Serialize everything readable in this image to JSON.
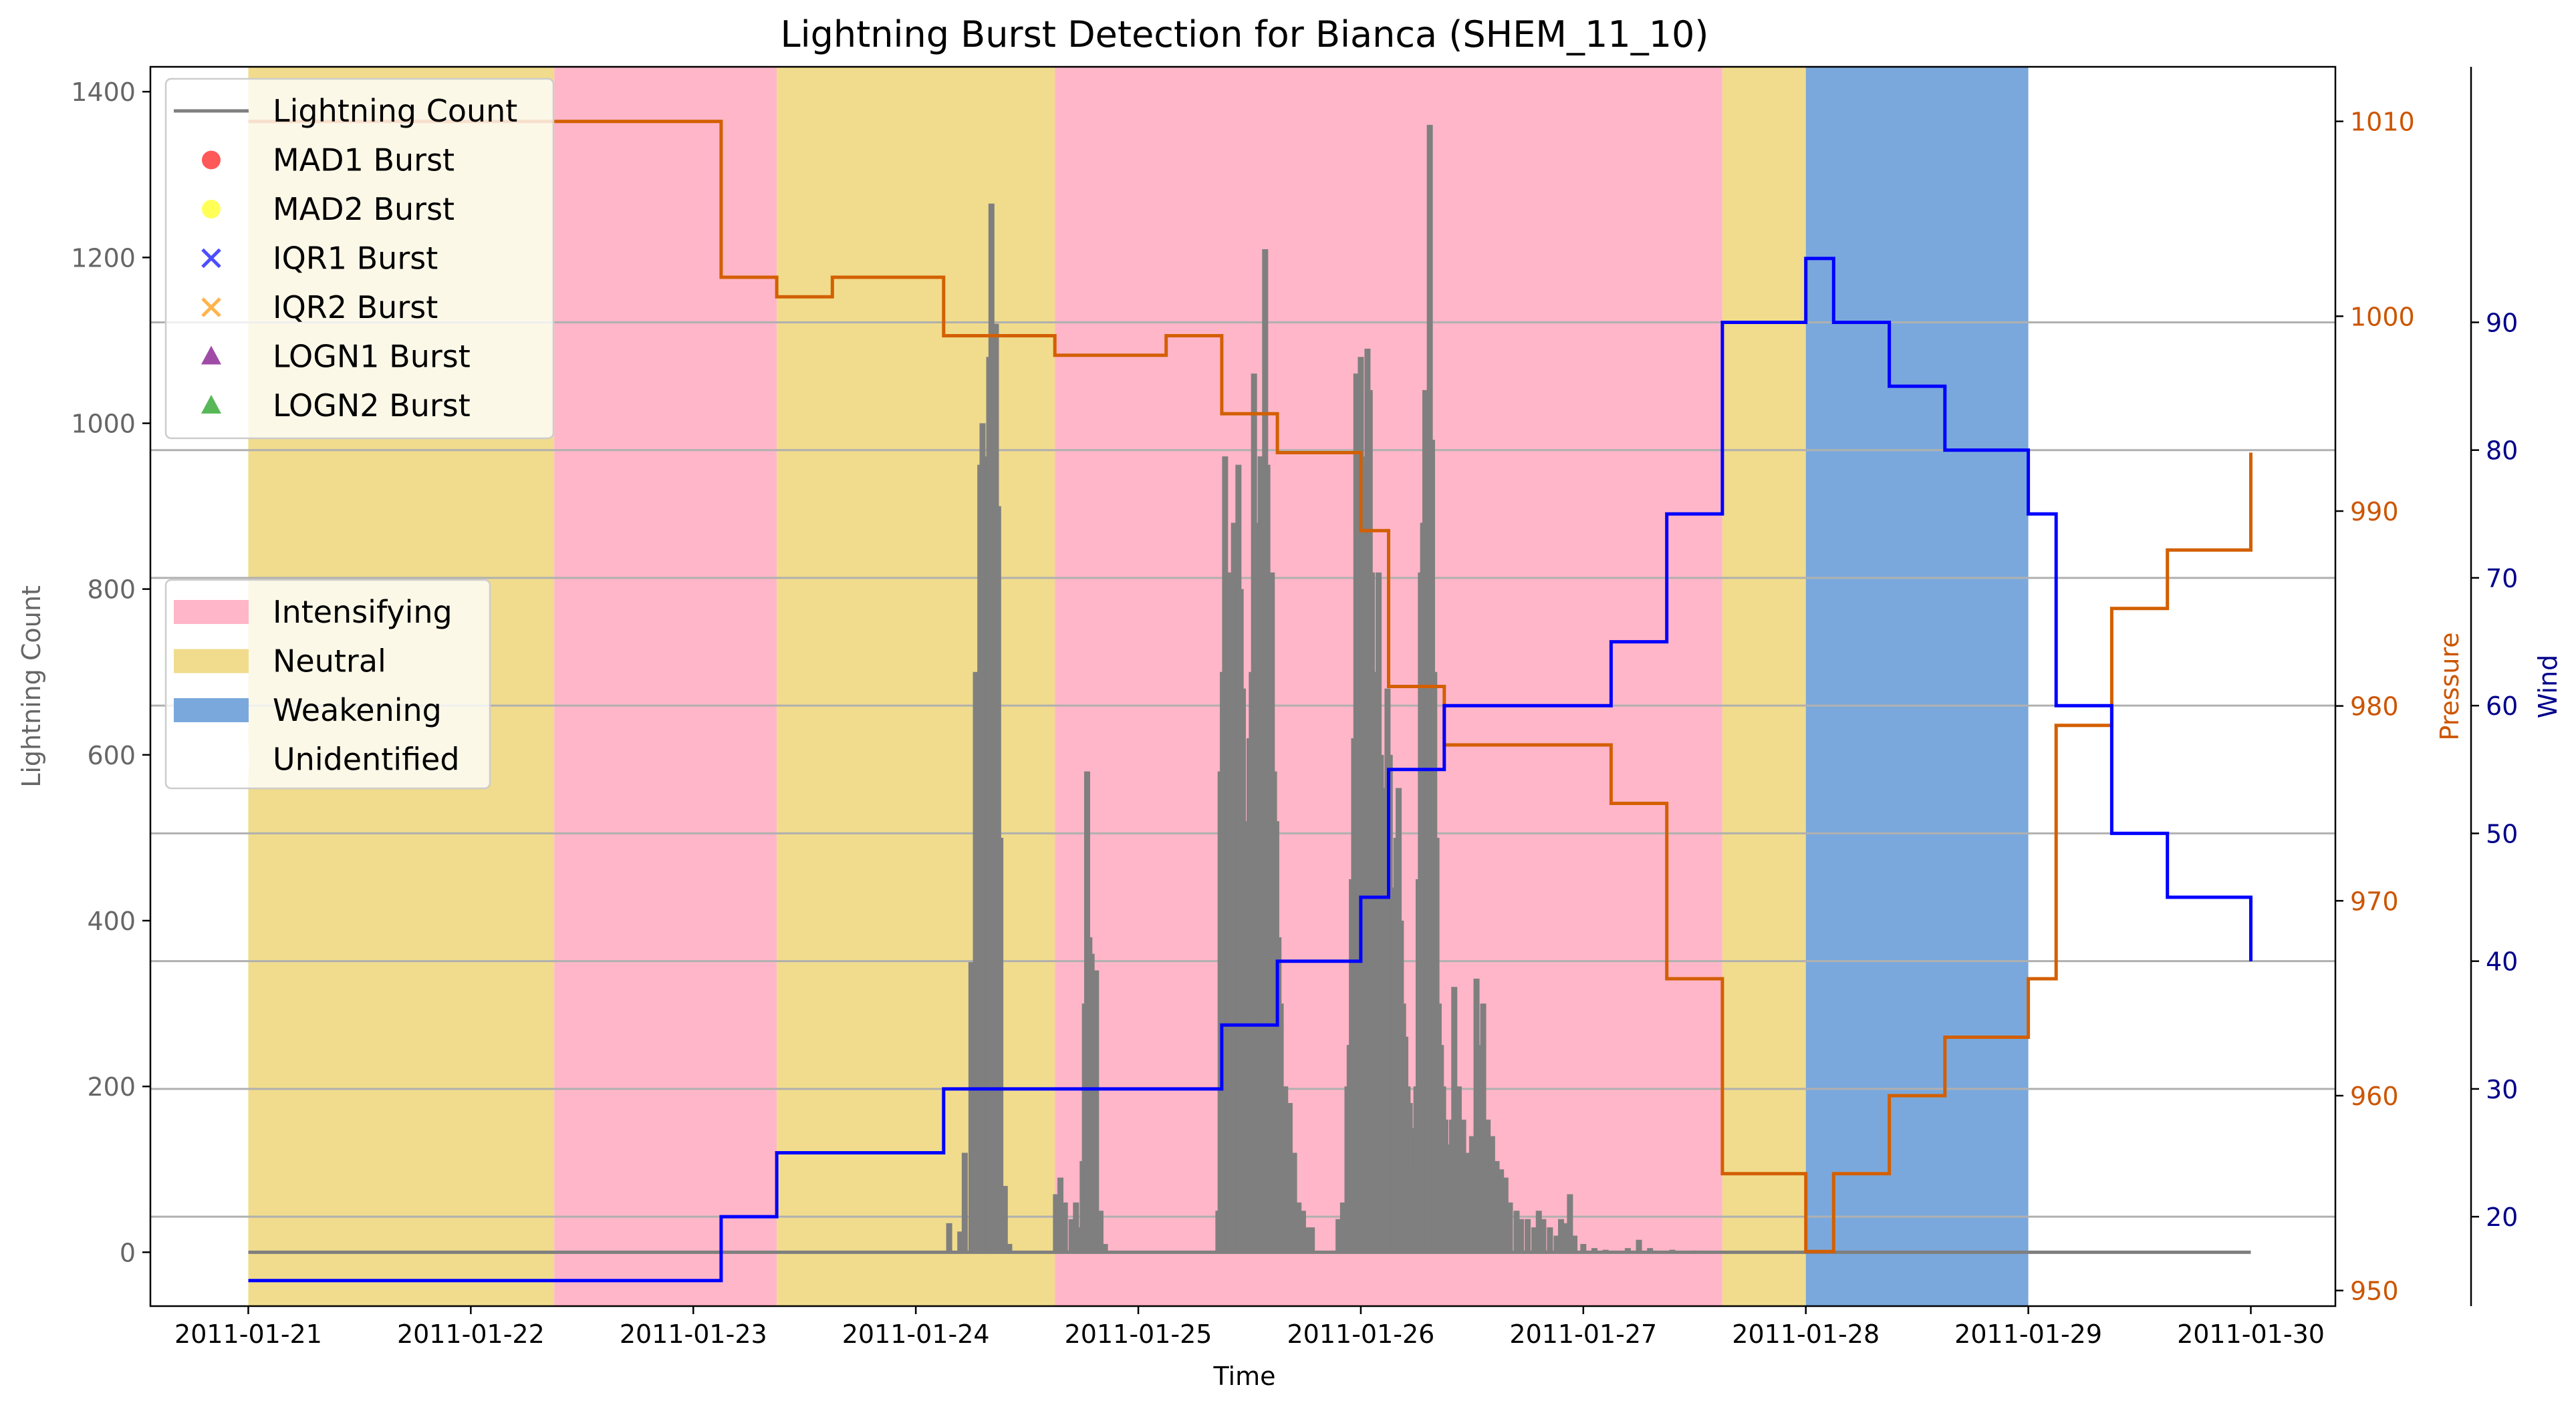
{
  "chart_data": {
    "type": "line",
    "title": "Lightning Burst Detection for Bianca (SHEM_11_10)",
    "xlabel": "Time",
    "ylabel_left": "Lightning Count",
    "ylabel_pressure": "Pressure",
    "ylabel_wind": "Wind",
    "x_ticks": [
      "2011-01-21",
      "2011-01-22",
      "2011-01-23",
      "2011-01-24",
      "2011-01-25",
      "2011-01-26",
      "2011-01-27",
      "2011-01-28",
      "2011-01-29",
      "2011-01-30"
    ],
    "xlim_days": [
      -0.44,
      9.38
    ],
    "y_left": {
      "lim": [
        -65,
        1430
      ],
      "ticks": [
        0,
        200,
        400,
        600,
        800,
        1000,
        1200,
        1400
      ]
    },
    "y_pressure": {
      "lim": [
        949.2,
        1012.8
      ],
      "ticks": [
        950,
        960,
        970,
        980,
        990,
        1000,
        1010
      ]
    },
    "y_wind": {
      "lim": [
        13,
        110
      ],
      "ticks": [
        20,
        30,
        40,
        50,
        60,
        70,
        80,
        90
      ]
    },
    "grid": "wind-axis horizontal lines",
    "colors": {
      "lightning": "#7f7f7f",
      "pressure": "#d35f00",
      "wind": "#0000ff",
      "intensifying": "#ffb6c8",
      "neutral": "#f0dc8c",
      "weakening": "#7aa8dc",
      "pressure_axis": "#cc5500",
      "wind_axis": "#00008b",
      "left_axis": "#666666"
    },
    "phases": [
      {
        "label": "Neutral",
        "start": 0.0,
        "end": 1.375
      },
      {
        "label": "Intensifying",
        "start": 1.375,
        "end": 2.375
      },
      {
        "label": "Neutral",
        "start": 2.375,
        "end": 3.625
      },
      {
        "label": "Intensifying",
        "start": 3.625,
        "end": 6.625
      },
      {
        "label": "Neutral",
        "start": 6.625,
        "end": 7.0
      },
      {
        "label": "Weakening",
        "start": 7.0,
        "end": 8.0
      }
    ],
    "pressure_series": {
      "name": "Pressure",
      "points": [
        [
          0.0,
          1010
        ],
        [
          2.125,
          1010
        ],
        [
          2.125,
          1002
        ],
        [
          2.375,
          1002
        ],
        [
          2.375,
          1001
        ],
        [
          2.625,
          1001
        ],
        [
          2.625,
          1002
        ],
        [
          3.125,
          1002
        ],
        [
          3.125,
          999
        ],
        [
          3.625,
          999
        ],
        [
          3.625,
          998
        ],
        [
          4.125,
          998
        ],
        [
          4.125,
          999
        ],
        [
          4.375,
          999
        ],
        [
          4.375,
          995
        ],
        [
          4.625,
          995
        ],
        [
          4.625,
          993
        ],
        [
          5.0,
          993
        ],
        [
          5.0,
          989
        ],
        [
          5.125,
          989
        ],
        [
          5.125,
          981
        ],
        [
          5.375,
          981
        ],
        [
          5.375,
          978
        ],
        [
          6.125,
          978
        ],
        [
          6.125,
          975
        ],
        [
          6.375,
          975
        ],
        [
          6.375,
          966
        ],
        [
          6.625,
          966
        ],
        [
          6.625,
          956
        ],
        [
          7.0,
          956
        ],
        [
          7.0,
          952
        ],
        [
          7.125,
          952
        ],
        [
          7.125,
          956
        ],
        [
          7.375,
          956
        ],
        [
          7.375,
          960
        ],
        [
          7.625,
          960
        ],
        [
          7.625,
          963
        ],
        [
          8.0,
          963
        ],
        [
          8.0,
          966
        ],
        [
          8.125,
          966
        ],
        [
          8.125,
          979
        ],
        [
          8.375,
          979
        ],
        [
          8.375,
          985
        ],
        [
          8.625,
          985
        ],
        [
          8.625,
          988
        ],
        [
          9.0,
          988
        ],
        [
          9.0,
          993
        ]
      ]
    },
    "wind_series": {
      "name": "Wind",
      "points": [
        [
          0.0,
          15
        ],
        [
          2.125,
          15
        ],
        [
          2.125,
          20
        ],
        [
          2.375,
          20
        ],
        [
          2.375,
          25
        ],
        [
          3.125,
          25
        ],
        [
          3.125,
          30
        ],
        [
          4.375,
          30
        ],
        [
          4.375,
          35
        ],
        [
          4.625,
          35
        ],
        [
          4.625,
          40
        ],
        [
          5.0,
          40
        ],
        [
          5.0,
          45
        ],
        [
          5.125,
          45
        ],
        [
          5.125,
          55
        ],
        [
          5.375,
          55
        ],
        [
          5.375,
          60
        ],
        [
          6.125,
          60
        ],
        [
          6.125,
          65
        ],
        [
          6.375,
          65
        ],
        [
          6.375,
          75
        ],
        [
          6.625,
          75
        ],
        [
          6.625,
          90
        ],
        [
          7.0,
          90
        ],
        [
          7.0,
          95
        ],
        [
          7.125,
          95
        ],
        [
          7.125,
          90
        ],
        [
          7.375,
          90
        ],
        [
          7.375,
          85
        ],
        [
          7.625,
          85
        ],
        [
          7.625,
          80
        ],
        [
          8.0,
          80
        ],
        [
          8.0,
          75
        ],
        [
          8.125,
          75
        ],
        [
          8.125,
          60
        ],
        [
          8.375,
          60
        ],
        [
          8.375,
          50
        ],
        [
          8.625,
          50
        ],
        [
          8.625,
          45
        ],
        [
          9.0,
          45
        ],
        [
          9.0,
          40
        ]
      ]
    },
    "lightning_series": {
      "name": "Lightning Count",
      "bursts": [
        [
          3.15,
          35
        ],
        [
          3.2,
          25
        ],
        [
          3.22,
          120
        ],
        [
          3.25,
          350
        ],
        [
          3.27,
          700
        ],
        [
          3.29,
          950
        ],
        [
          3.3,
          1000
        ],
        [
          3.31,
          880
        ],
        [
          3.32,
          960
        ],
        [
          3.33,
          1080
        ],
        [
          3.34,
          1265
        ],
        [
          3.35,
          960
        ],
        [
          3.36,
          1120
        ],
        [
          3.37,
          900
        ],
        [
          3.38,
          500
        ],
        [
          3.4,
          80
        ],
        [
          3.42,
          10
        ],
        [
          3.63,
          70
        ],
        [
          3.65,
          90
        ],
        [
          3.67,
          60
        ],
        [
          3.7,
          40
        ],
        [
          3.72,
          60
        ],
        [
          3.74,
          30
        ],
        [
          3.75,
          110
        ],
        [
          3.76,
          300
        ],
        [
          3.77,
          580
        ],
        [
          3.78,
          380
        ],
        [
          3.79,
          360
        ],
        [
          3.8,
          200
        ],
        [
          3.81,
          340
        ],
        [
          3.83,
          50
        ],
        [
          3.85,
          10
        ],
        [
          4.36,
          50
        ],
        [
          4.37,
          580
        ],
        [
          4.38,
          700
        ],
        [
          4.39,
          960
        ],
        [
          4.4,
          820
        ],
        [
          4.41,
          820
        ],
        [
          4.42,
          760
        ],
        [
          4.43,
          880
        ],
        [
          4.44,
          720
        ],
        [
          4.45,
          950
        ],
        [
          4.46,
          800
        ],
        [
          4.47,
          680
        ],
        [
          4.48,
          520
        ],
        [
          4.49,
          460
        ],
        [
          4.5,
          620
        ],
        [
          4.51,
          700
        ],
        [
          4.52,
          1060
        ],
        [
          4.53,
          880
        ],
        [
          4.54,
          850
        ],
        [
          4.55,
          960
        ],
        [
          4.56,
          900
        ],
        [
          4.57,
          1210
        ],
        [
          4.58,
          950
        ],
        [
          4.59,
          700
        ],
        [
          4.6,
          820
        ],
        [
          4.61,
          580
        ],
        [
          4.62,
          520
        ],
        [
          4.63,
          380
        ],
        [
          4.64,
          300
        ],
        [
          4.66,
          200
        ],
        [
          4.68,
          180
        ],
        [
          4.7,
          120
        ],
        [
          4.72,
          60
        ],
        [
          4.74,
          50
        ],
        [
          4.76,
          30
        ],
        [
          4.78,
          30
        ],
        [
          4.9,
          40
        ],
        [
          4.92,
          60
        ],
        [
          4.94,
          200
        ],
        [
          4.95,
          250
        ],
        [
          4.96,
          450
        ],
        [
          4.97,
          620
        ],
        [
          4.98,
          1060
        ],
        [
          4.99,
          870
        ],
        [
          5.0,
          1080
        ],
        [
          5.01,
          960
        ],
        [
          5.02,
          870
        ],
        [
          5.03,
          1090
        ],
        [
          5.04,
          1040
        ],
        [
          5.05,
          820
        ],
        [
          5.06,
          700
        ],
        [
          5.07,
          690
        ],
        [
          5.08,
          820
        ],
        [
          5.09,
          600
        ],
        [
          5.1,
          400
        ],
        [
          5.11,
          560
        ],
        [
          5.12,
          680
        ],
        [
          5.13,
          600
        ],
        [
          5.14,
          440
        ],
        [
          5.15,
          430
        ],
        [
          5.16,
          500
        ],
        [
          5.17,
          560
        ],
        [
          5.18,
          400
        ],
        [
          5.19,
          300
        ],
        [
          5.2,
          260
        ],
        [
          5.21,
          200
        ],
        [
          5.22,
          180
        ],
        [
          5.23,
          150
        ],
        [
          5.24,
          100
        ],
        [
          5.25,
          200
        ],
        [
          5.26,
          450
        ],
        [
          5.27,
          820
        ],
        [
          5.28,
          880
        ],
        [
          5.29,
          1040
        ],
        [
          5.3,
          850
        ],
        [
          5.31,
          1360
        ],
        [
          5.32,
          980
        ],
        [
          5.33,
          700
        ],
        [
          5.34,
          500
        ],
        [
          5.35,
          300
        ],
        [
          5.36,
          250
        ],
        [
          5.37,
          200
        ],
        [
          5.38,
          160
        ],
        [
          5.4,
          130
        ],
        [
          5.41,
          160
        ],
        [
          5.42,
          320
        ],
        [
          5.44,
          200
        ],
        [
          5.46,
          160
        ],
        [
          5.48,
          120
        ],
        [
          5.5,
          140
        ],
        [
          5.52,
          330
        ],
        [
          5.53,
          250
        ],
        [
          5.54,
          200
        ],
        [
          5.55,
          300
        ],
        [
          5.57,
          160
        ],
        [
          5.59,
          140
        ],
        [
          5.61,
          110
        ],
        [
          5.63,
          100
        ],
        [
          5.65,
          90
        ],
        [
          5.67,
          60
        ],
        [
          5.7,
          50
        ],
        [
          5.72,
          40
        ],
        [
          5.75,
          40
        ],
        [
          5.78,
          30
        ],
        [
          5.8,
          50
        ],
        [
          5.82,
          40
        ],
        [
          5.85,
          30
        ],
        [
          5.88,
          20
        ],
        [
          5.9,
          40
        ],
        [
          5.92,
          35
        ],
        [
          5.94,
          70
        ],
        [
          5.96,
          20
        ],
        [
          6.0,
          10
        ],
        [
          6.05,
          5
        ],
        [
          6.1,
          3
        ],
        [
          6.2,
          5
        ],
        [
          6.25,
          15
        ],
        [
          6.3,
          5
        ],
        [
          6.4,
          3
        ],
        [
          6.5,
          2
        ]
      ]
    },
    "legend_lines": [
      {
        "label": "Lightning Count",
        "kind": "line",
        "color": "#7f7f7f"
      },
      {
        "label": "MAD1 Burst",
        "kind": "dot",
        "color": "#ff2020"
      },
      {
        "label": "MAD2 Burst",
        "kind": "dot",
        "color": "#ffff20"
      },
      {
        "label": "IQR1 Burst",
        "kind": "x",
        "color": "#2020ff"
      },
      {
        "label": "IQR2 Burst",
        "kind": "x",
        "color": "#ffa020"
      },
      {
        "label": "LOGN1 Burst",
        "kind": "tri",
        "color": "#80108a"
      },
      {
        "label": "LOGN2 Burst",
        "kind": "tri",
        "color": "#20a020"
      }
    ],
    "legend_phases": [
      {
        "label": "Intensifying",
        "color": "#ffb6c8"
      },
      {
        "label": "Neutral",
        "color": "#f0dc8c"
      },
      {
        "label": "Weakening",
        "color": "#7aa8dc"
      },
      {
        "label": "Unidentified",
        "color": "#ffffff"
      }
    ]
  }
}
